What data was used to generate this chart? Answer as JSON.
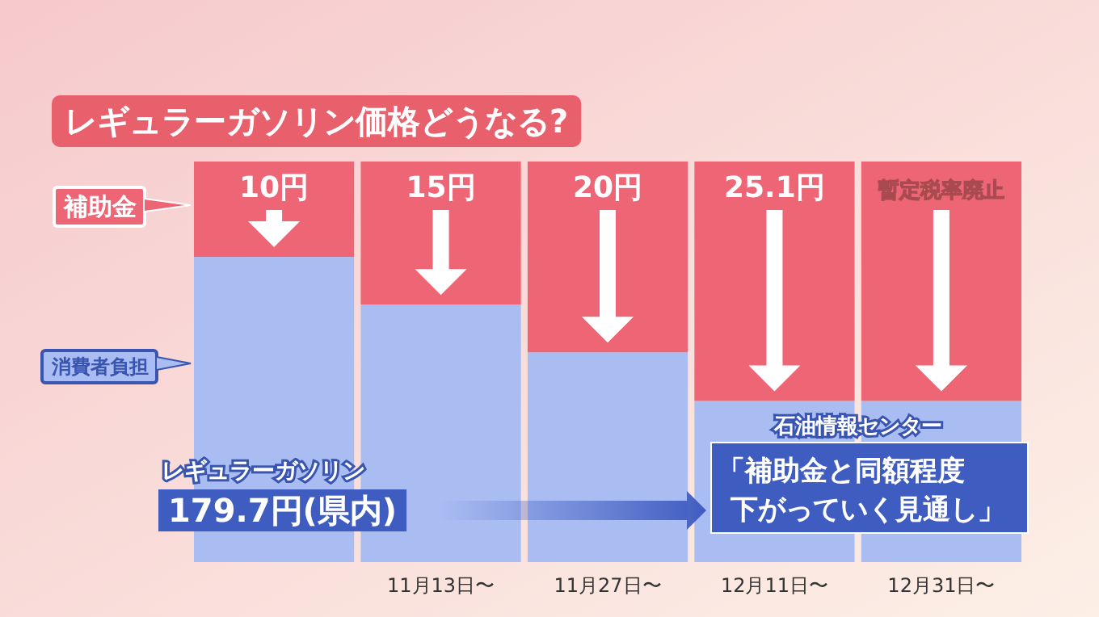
{
  "chart_data": {
    "type": "bar",
    "title": "レギュラーガソリン価格どうなる?",
    "stacked": true,
    "ylim": [
      0,
      42
    ],
    "tick_labels": "x",
    "categories": [
      null,
      "11月13日〜",
      "11月27日〜",
      "12月11日〜",
      "12月31日〜"
    ],
    "series": [
      {
        "name": "消費者負担",
        "color": "#aabdf2",
        "values": [
          32,
          27,
          22,
          16.9,
          16.9
        ]
      },
      {
        "name": "補助金",
        "color": "#ee6676",
        "values": [
          10,
          15,
          20,
          25.1,
          25.1
        ],
        "value_labels": [
          "10円",
          "15円",
          "20円",
          "25.1円",
          "暫定税率廃止"
        ]
      }
    ],
    "legend": "left",
    "annotations": [
      "石油情報センター",
      "レギュラーガソリン",
      "179.7円(県内)",
      "「補助金と同額程度下がっていく見通し」"
    ]
  }
}
